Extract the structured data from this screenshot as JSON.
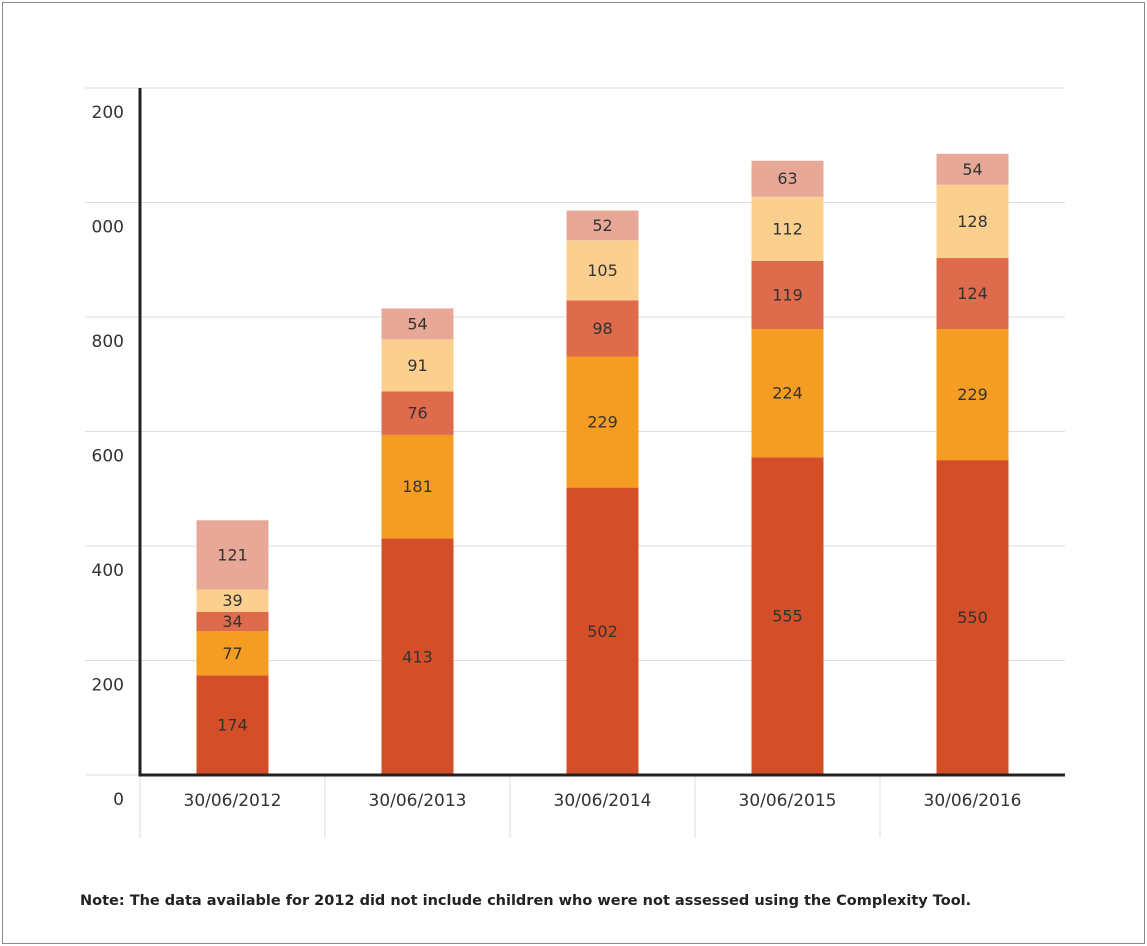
{
  "chart_data": {
    "type": "stacked_bar",
    "note": "Note: The data available for 2012 did not include children who were not assessed using the Complexity Tool.",
    "categories": [
      "30/06/2012",
      "30/06/2013",
      "30/06/2014",
      "30/06/2015",
      "30/06/2016"
    ],
    "series": [
      {
        "color": "#d44f27",
        "values": [
          174,
          413,
          502,
          555,
          550
        ]
      },
      {
        "color": "#f59d22",
        "values": [
          77,
          181,
          229,
          224,
          229
        ]
      },
      {
        "color": "#dd6b4c",
        "values": [
          34,
          76,
          98,
          119,
          124
        ]
      },
      {
        "color": "#fbd08e",
        "values": [
          39,
          91,
          105,
          112,
          128
        ]
      },
      {
        "color": "#e8a898",
        "values": [
          121,
          54,
          52,
          63,
          54
        ]
      }
    ],
    "ylim": [
      0,
      1200
    ],
    "yticks": [
      0,
      200,
      400,
      600,
      800,
      {
        "value": 1000,
        "label": "000"
      },
      {
        "value": 1200,
        "label": "200"
      }
    ],
    "grid": true
  }
}
